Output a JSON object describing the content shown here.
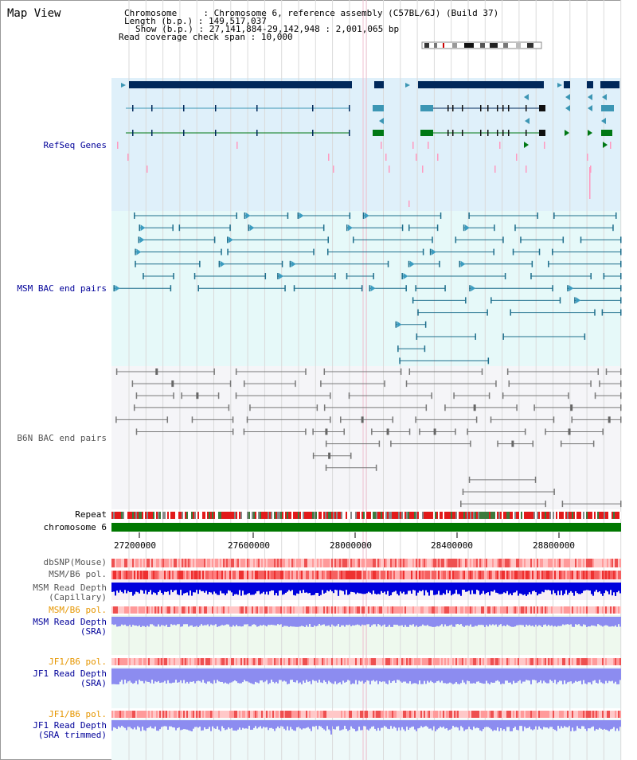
{
  "title": "Map View",
  "info": {
    "chromosome_label": "Chromosome",
    "chromosome_value": "Chromosome 6, reference assembly (C57BL/6J) (Build 37)",
    "length_label": "Length (b.p.)",
    "length_value": "149,517,037",
    "show_label": "Show (b.p.)",
    "show_value": "27,141,884-29,142,948 : 2,001,065 bp",
    "coverage_label": "Read coverage check span",
    "coverage_value": "10,000"
  },
  "tracks": {
    "refseq": "RefSeq Genes",
    "msm_bac": "MSM BAC end pairs",
    "b6n_bac": "B6N BAC end pairs",
    "repeat": "Repeat",
    "chromosome": "chromosome 6",
    "dbsnp": "dbSNP(Mouse)",
    "msm_pol1": "MSM/B6 pol.",
    "msm_depth_cap_1": "MSM Read Depth",
    "msm_depth_cap_2": "(Capillary)",
    "msm_pol2": "MSM/B6 pol.",
    "msm_depth_sra_1": "MSM Read Depth",
    "msm_depth_sra_2": "(SRA)",
    "jf1_pol1": "JF1/B6 pol.",
    "jf1_depth_1": "JF1 Read Depth",
    "jf1_depth_2": "(SRA)",
    "jf1_pol2": "JF1/B6 pol.",
    "jf1_trim_1": "JF1 Read Depth",
    "jf1_trim_2": "(SRA trimmed)"
  },
  "axis": {
    "ticks": [
      "27200000",
      "27600000",
      "28000000",
      "28400000",
      "28800000"
    ]
  },
  "colors": {
    "refseq_bg": "#dff0fa",
    "msm_bac_bg": "#e6f9f9",
    "b6n_bg": "#f5f5f8",
    "label_blue": "#000099",
    "label_orange": "#e69600",
    "label_gray": "#555555",
    "gene_navy": "#00285a",
    "gene_teal": "#3c96b4",
    "gene_green": "#007814",
    "msm_line": "#1e6e8c",
    "b6n_line": "#787878",
    "chrom_green": "#007800",
    "depth_blue": "#0000dc",
    "depth_light": "#8c8cf0"
  }
}
